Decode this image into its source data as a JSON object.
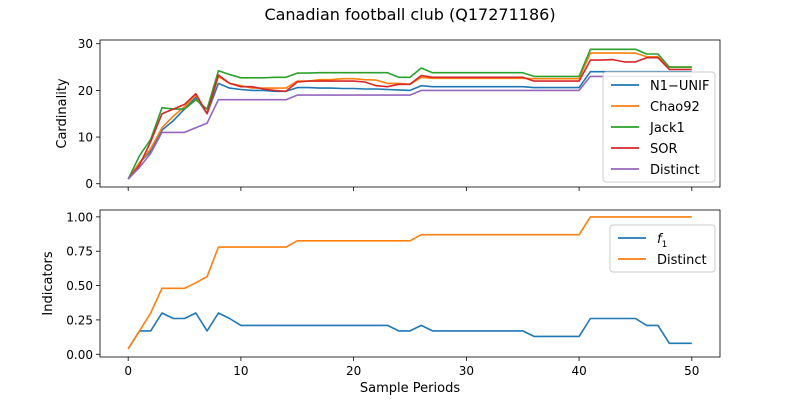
{
  "title": "Canadian football club (Q17271186)",
  "chart_data": [
    {
      "type": "line",
      "ylabel": "Cardinality",
      "xlabel": "",
      "xlim": [
        -2.5,
        52.5
      ],
      "ylim": [
        -0.7,
        30.8
      ],
      "xticks": [
        0,
        10,
        20,
        30,
        40,
        50
      ],
      "yticks": [
        0,
        10,
        20,
        30
      ],
      "ytick_labels": [
        "0",
        "10",
        "20",
        "30"
      ],
      "show_xtick_labels": false,
      "legend": "right",
      "series": [
        {
          "name": "N1−UNIF",
          "color": "#1f77b4",
          "x": [
            0,
            1,
            2,
            3,
            4,
            5,
            6,
            7,
            8,
            9,
            10,
            11,
            12,
            13,
            14,
            15,
            16,
            17,
            18,
            19,
            20,
            21,
            22,
            23,
            24,
            25,
            26,
            27,
            28,
            29,
            30,
            31,
            32,
            33,
            34,
            35,
            36,
            37,
            38,
            39,
            40,
            41,
            42,
            43,
            44,
            45,
            46,
            47,
            48,
            49,
            50
          ],
          "y": [
            1,
            4.5,
            7,
            11.5,
            13.5,
            16,
            18.5,
            15,
            21.5,
            20.5,
            20.2,
            20,
            20,
            19.8,
            19.8,
            20.6,
            20.6,
            20.5,
            20.5,
            20.4,
            20.4,
            20.3,
            20.3,
            20.2,
            20.1,
            20,
            21,
            20.8,
            20.8,
            20.8,
            20.8,
            20.8,
            20.8,
            20.8,
            20.8,
            20.8,
            20.6,
            20.6,
            20.6,
            20.6,
            20.6,
            24,
            24,
            24,
            24,
            24,
            24,
            24,
            24,
            24,
            24
          ]
        },
        {
          "name": "Chao92",
          "color": "#ff7f0e",
          "x": [
            0,
            1,
            2,
            3,
            4,
            5,
            6,
            7,
            8,
            9,
            10,
            11,
            12,
            13,
            14,
            15,
            16,
            17,
            18,
            19,
            20,
            21,
            22,
            23,
            24,
            25,
            26,
            27,
            28,
            29,
            30,
            31,
            32,
            33,
            34,
            35,
            36,
            37,
            38,
            39,
            40,
            41,
            42,
            43,
            44,
            45,
            46,
            47,
            48,
            49,
            50
          ],
          "y": [
            1,
            4.5,
            7.5,
            12,
            14.5,
            16.5,
            19,
            15,
            23,
            21.5,
            21,
            20.5,
            20.5,
            20.5,
            20.5,
            22,
            22,
            22.3,
            22.3,
            22.5,
            22.5,
            22.3,
            22.2,
            21.5,
            21.5,
            21.3,
            22.8,
            22.6,
            22.6,
            22.6,
            22.6,
            22.6,
            22.6,
            22.6,
            22.6,
            22.6,
            22.5,
            22.5,
            22.5,
            22.5,
            22.5,
            28,
            28,
            28,
            28,
            28,
            27.2,
            27.2,
            25,
            25,
            25
          ]
        },
        {
          "name": "Jack1",
          "color": "#2ca02c",
          "x": [
            0,
            1,
            2,
            3,
            4,
            5,
            6,
            7,
            8,
            9,
            10,
            11,
            12,
            13,
            14,
            15,
            16,
            17,
            18,
            19,
            20,
            21,
            22,
            23,
            24,
            25,
            26,
            27,
            28,
            29,
            30,
            31,
            32,
            33,
            34,
            35,
            36,
            37,
            38,
            39,
            40,
            41,
            42,
            43,
            44,
            45,
            46,
            47,
            48,
            49,
            50
          ],
          "y": [
            1,
            6,
            9.5,
            16.3,
            16,
            16,
            18,
            16,
            24.2,
            23.4,
            22.7,
            22.7,
            22.7,
            22.8,
            22.8,
            23.7,
            23.7,
            23.8,
            23.8,
            23.8,
            23.8,
            23.8,
            23.8,
            23.8,
            22.8,
            22.8,
            24.8,
            23.8,
            23.8,
            23.8,
            23.8,
            23.8,
            23.8,
            23.8,
            23.8,
            23.8,
            23,
            23,
            23,
            23,
            23,
            28.8,
            28.8,
            28.8,
            28.8,
            28.8,
            27.8,
            27.8,
            25,
            25,
            25
          ]
        },
        {
          "name": "SOR",
          "color": "#d62728",
          "x": [
            0,
            1,
            2,
            3,
            4,
            5,
            6,
            7,
            8,
            9,
            10,
            11,
            12,
            13,
            14,
            15,
            16,
            17,
            18,
            19,
            20,
            21,
            22,
            23,
            24,
            25,
            26,
            27,
            28,
            29,
            30,
            31,
            32,
            33,
            34,
            35,
            36,
            37,
            38,
            39,
            40,
            41,
            42,
            43,
            44,
            45,
            46,
            47,
            48,
            49,
            50
          ],
          "y": [
            1,
            4,
            9,
            15,
            16,
            17,
            19.3,
            15,
            23.3,
            21.5,
            20.8,
            20.8,
            20.3,
            20,
            19.8,
            21.8,
            22,
            22,
            22,
            22,
            22,
            21.8,
            21,
            20.8,
            21.3,
            21.3,
            23.2,
            22.8,
            22.8,
            22.8,
            22.8,
            22.8,
            22.8,
            22.8,
            22.8,
            22.8,
            22,
            22,
            22,
            22,
            22,
            26.5,
            26.5,
            26.6,
            26.1,
            26.1,
            27,
            27,
            24.5,
            24.5,
            24.5
          ]
        },
        {
          "name": "Distinct",
          "color": "#9467bd",
          "x": [
            0,
            1,
            2,
            3,
            4,
            5,
            6,
            7,
            8,
            9,
            10,
            11,
            12,
            13,
            14,
            15,
            16,
            17,
            18,
            19,
            20,
            21,
            22,
            23,
            24,
            25,
            26,
            27,
            28,
            29,
            30,
            31,
            32,
            33,
            34,
            35,
            36,
            37,
            38,
            39,
            40,
            41,
            42,
            43,
            44,
            45,
            46,
            47,
            48,
            49,
            50
          ],
          "y": [
            1,
            3.5,
            6.5,
            11,
            11,
            11,
            12,
            13,
            18,
            18,
            18,
            18,
            18,
            18,
            18,
            19,
            19,
            19,
            19,
            19,
            19,
            19,
            19,
            19,
            19,
            19,
            20,
            20,
            20,
            20,
            20,
            20,
            20,
            20,
            20,
            20,
            20,
            20,
            20,
            20,
            20,
            23,
            23,
            23,
            23,
            23,
            23,
            23,
            23,
            23,
            23
          ]
        }
      ]
    },
    {
      "type": "line",
      "ylabel": "Indicators",
      "xlabel": "Sample Periods",
      "xlim": [
        -2.5,
        52.5
      ],
      "ylim": [
        -0.02,
        1.05
      ],
      "xticks": [
        0,
        10,
        20,
        30,
        40,
        50
      ],
      "xtick_labels": [
        "0",
        "10",
        "20",
        "30",
        "40",
        "50"
      ],
      "yticks": [
        0,
        0.25,
        0.5,
        0.75,
        1.0
      ],
      "ytick_labels": [
        "0.00",
        "0.25",
        "0.50",
        "0.75",
        "1.00"
      ],
      "legend": "top-right",
      "series": [
        {
          "name": "f1",
          "legend_main": "f",
          "legend_sub": "1",
          "color": "#1f77b4",
          "x": [
            0,
            1,
            2,
            3,
            4,
            5,
            6,
            7,
            8,
            9,
            10,
            11,
            12,
            13,
            14,
            15,
            16,
            17,
            18,
            19,
            20,
            21,
            22,
            23,
            24,
            25,
            26,
            27,
            28,
            29,
            30,
            31,
            32,
            33,
            34,
            35,
            36,
            37,
            38,
            39,
            40,
            41,
            42,
            43,
            44,
            45,
            46,
            47,
            48,
            49,
            50
          ],
          "y": [
            0.04,
            0.17,
            0.17,
            0.3,
            0.26,
            0.26,
            0.3,
            0.17,
            0.3,
            0.26,
            0.21,
            0.21,
            0.21,
            0.21,
            0.21,
            0.21,
            0.21,
            0.21,
            0.21,
            0.21,
            0.21,
            0.21,
            0.21,
            0.21,
            0.17,
            0.17,
            0.21,
            0.17,
            0.17,
            0.17,
            0.17,
            0.17,
            0.17,
            0.17,
            0.17,
            0.17,
            0.13,
            0.13,
            0.13,
            0.13,
            0.13,
            0.26,
            0.26,
            0.26,
            0.26,
            0.26,
            0.21,
            0.21,
            0.08,
            0.08,
            0.08
          ]
        },
        {
          "name": "Distinct",
          "color": "#ff7f0e",
          "x": [
            0,
            1,
            2,
            3,
            4,
            5,
            6,
            7,
            8,
            9,
            10,
            11,
            12,
            13,
            14,
            15,
            16,
            17,
            18,
            19,
            20,
            21,
            22,
            23,
            24,
            25,
            26,
            27,
            28,
            29,
            30,
            31,
            32,
            33,
            34,
            35,
            36,
            37,
            38,
            39,
            40,
            41,
            42,
            43,
            44,
            45,
            46,
            47,
            48,
            49,
            50
          ],
          "y": [
            0.04,
            0.17,
            0.3,
            0.48,
            0.48,
            0.48,
            0.52,
            0.565,
            0.78,
            0.78,
            0.78,
            0.78,
            0.78,
            0.78,
            0.78,
            0.826,
            0.826,
            0.826,
            0.826,
            0.826,
            0.826,
            0.826,
            0.826,
            0.826,
            0.826,
            0.826,
            0.87,
            0.87,
            0.87,
            0.87,
            0.87,
            0.87,
            0.87,
            0.87,
            0.87,
            0.87,
            0.87,
            0.87,
            0.87,
            0.87,
            0.87,
            1,
            1,
            1,
            1,
            1,
            1,
            1,
            1,
            1,
            1
          ]
        }
      ]
    }
  ]
}
